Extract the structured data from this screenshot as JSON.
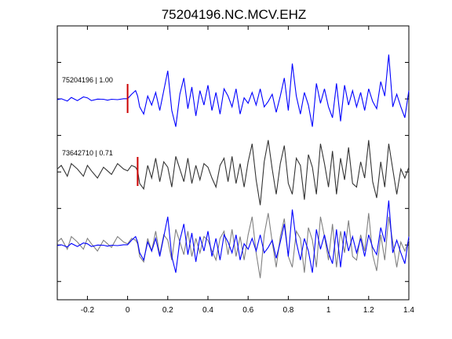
{
  "chart_data": {
    "type": "line",
    "title": "75204196.NC.MCV.EHZ",
    "xlabel": "",
    "ylabel": "",
    "xlim": [
      -0.35,
      1.4
    ],
    "x_ticks": [
      -0.2,
      0,
      0.2,
      0.4,
      0.6,
      0.8,
      1,
      1.2,
      1.4
    ],
    "x_tick_labels": [
      "-0.2",
      "0",
      "0.2",
      "0.4",
      "0.6",
      "0.8",
      "1",
      "1.2",
      "1.4"
    ],
    "grid": false,
    "traces": [
      {
        "label": "75204196 | 1.00",
        "color": "#0000ff",
        "pick_time": 0.0,
        "pick_color": "#cc0000",
        "x": [
          -0.35,
          -0.33,
          -0.3,
          -0.28,
          -0.25,
          -0.22,
          -0.2,
          -0.18,
          -0.15,
          -0.12,
          -0.1,
          -0.08,
          -0.05,
          -0.02,
          0,
          0.02,
          0.04,
          0.05,
          0.06,
          0.08,
          0.1,
          0.12,
          0.14,
          0.16,
          0.18,
          0.2,
          0.22,
          0.24,
          0.26,
          0.28,
          0.3,
          0.32,
          0.34,
          0.36,
          0.38,
          0.4,
          0.42,
          0.44,
          0.46,
          0.48,
          0.5,
          0.52,
          0.54,
          0.56,
          0.58,
          0.6,
          0.62,
          0.64,
          0.66,
          0.68,
          0.7,
          0.72,
          0.74,
          0.76,
          0.78,
          0.8,
          0.82,
          0.84,
          0.86,
          0.88,
          0.9,
          0.92,
          0.94,
          0.96,
          0.98,
          1,
          1.02,
          1.04,
          1.06,
          1.08,
          1.1,
          1.12,
          1.14,
          1.16,
          1.18,
          1.2,
          1.22,
          1.24,
          1.26,
          1.28,
          1.3,
          1.32,
          1.34,
          1.36,
          1.38,
          1.4
        ],
        "y": [
          0,
          0.05,
          -0.08,
          0.12,
          -0.05,
          0.15,
          0.1,
          -0.05,
          0.03,
          0.02,
          -0.03,
          0.02,
          0,
          0.05,
          0.05,
          0.3,
          0.5,
          0.2,
          -0.4,
          -0.8,
          0.2,
          -0.3,
          0.4,
          -0.6,
          0.5,
          1.6,
          -0.6,
          -1.5,
          0.3,
          1.2,
          -0.5,
          0.7,
          -0.9,
          0.5,
          -0.3,
          0.8,
          -0.6,
          0.4,
          -0.8,
          0.6,
          0.2,
          -0.4,
          0.6,
          -0.8,
          0.1,
          -0.2,
          0.4,
          -0.3,
          0.6,
          -0.4,
          -0.1,
          0.3,
          -0.7,
          0.2,
          1.2,
          -0.6,
          2.0,
          0.2,
          -0.8,
          0.4,
          -0.3,
          -1.5,
          0.9,
          -0.2,
          0.6,
          -0.4,
          -1.0,
          0.9,
          -1.2,
          0.8,
          -0.3,
          0.5,
          -0.4,
          0.4,
          -0.6,
          0.6,
          -0.1,
          -0.5,
          1.0,
          0.2,
          2.5,
          -0.4,
          0.3,
          -0.4,
          -1.0,
          0.5
        ]
      },
      {
        "label": "73642710 | 0.71",
        "color": "#333333",
        "pick_time": 0.05,
        "pick_color": "#cc0000",
        "x": [
          -0.35,
          -0.33,
          -0.3,
          -0.28,
          -0.25,
          -0.22,
          -0.2,
          -0.18,
          -0.15,
          -0.12,
          -0.1,
          -0.08,
          -0.05,
          -0.02,
          0,
          0.02,
          0.04,
          0.05,
          0.06,
          0.08,
          0.1,
          0.12,
          0.14,
          0.16,
          0.18,
          0.2,
          0.22,
          0.24,
          0.26,
          0.28,
          0.3,
          0.32,
          0.34,
          0.36,
          0.38,
          0.4,
          0.42,
          0.44,
          0.46,
          0.48,
          0.5,
          0.52,
          0.54,
          0.56,
          0.58,
          0.6,
          0.62,
          0.64,
          0.66,
          0.68,
          0.7,
          0.72,
          0.74,
          0.76,
          0.78,
          0.8,
          0.82,
          0.84,
          0.86,
          0.88,
          0.9,
          0.92,
          0.94,
          0.96,
          0.98,
          1,
          1.02,
          1.04,
          1.06,
          1.08,
          1.1,
          1.12,
          1.14,
          1.16,
          1.18,
          1.2,
          1.22,
          1.24,
          1.26,
          1.28,
          1.3,
          1.32,
          1.34,
          1.36,
          1.38,
          1.4
        ],
        "y": [
          0.2,
          0.4,
          -0.2,
          0.5,
          0.2,
          -0.2,
          0.4,
          0.1,
          -0.3,
          0.3,
          0.1,
          -0.1,
          0.5,
          0.2,
          0.1,
          0.4,
          0.3,
          0.1,
          -0.6,
          -0.9,
          0.4,
          -0.3,
          0.8,
          -0.5,
          0.6,
          0.3,
          -0.8,
          0.9,
          0.2,
          -0.5,
          0.8,
          -0.6,
          0.4,
          -0.4,
          0.5,
          0.3,
          -0.3,
          -0.8,
          0.4,
          0.8,
          -0.5,
          0.9,
          -0.6,
          0.5,
          -0.8,
          0.6,
          1.6,
          -0.4,
          -1.8,
          0.6,
          1.8,
          0.2,
          -1.2,
          0.5,
          1.5,
          -0.6,
          -1.2,
          0.8,
          0.4,
          -1.5,
          1.0,
          0.3,
          -1.2,
          1.6,
          0.5,
          -0.8,
          1.2,
          -1.2,
          0.8,
          -0.4,
          1.4,
          -0.6,
          -0.8,
          0.6,
          -0.3,
          1.8,
          -0.5,
          -1.4,
          0.6,
          -0.8,
          1.6,
          0.2,
          -1.2,
          0.2,
          -0.3,
          0.3
        ]
      }
    ],
    "overlay": {
      "description_colors": [
        "#0000ff",
        "#808080"
      ],
      "series": [
        "75204196 | 1.00",
        "73642710 | 0.71"
      ]
    }
  }
}
